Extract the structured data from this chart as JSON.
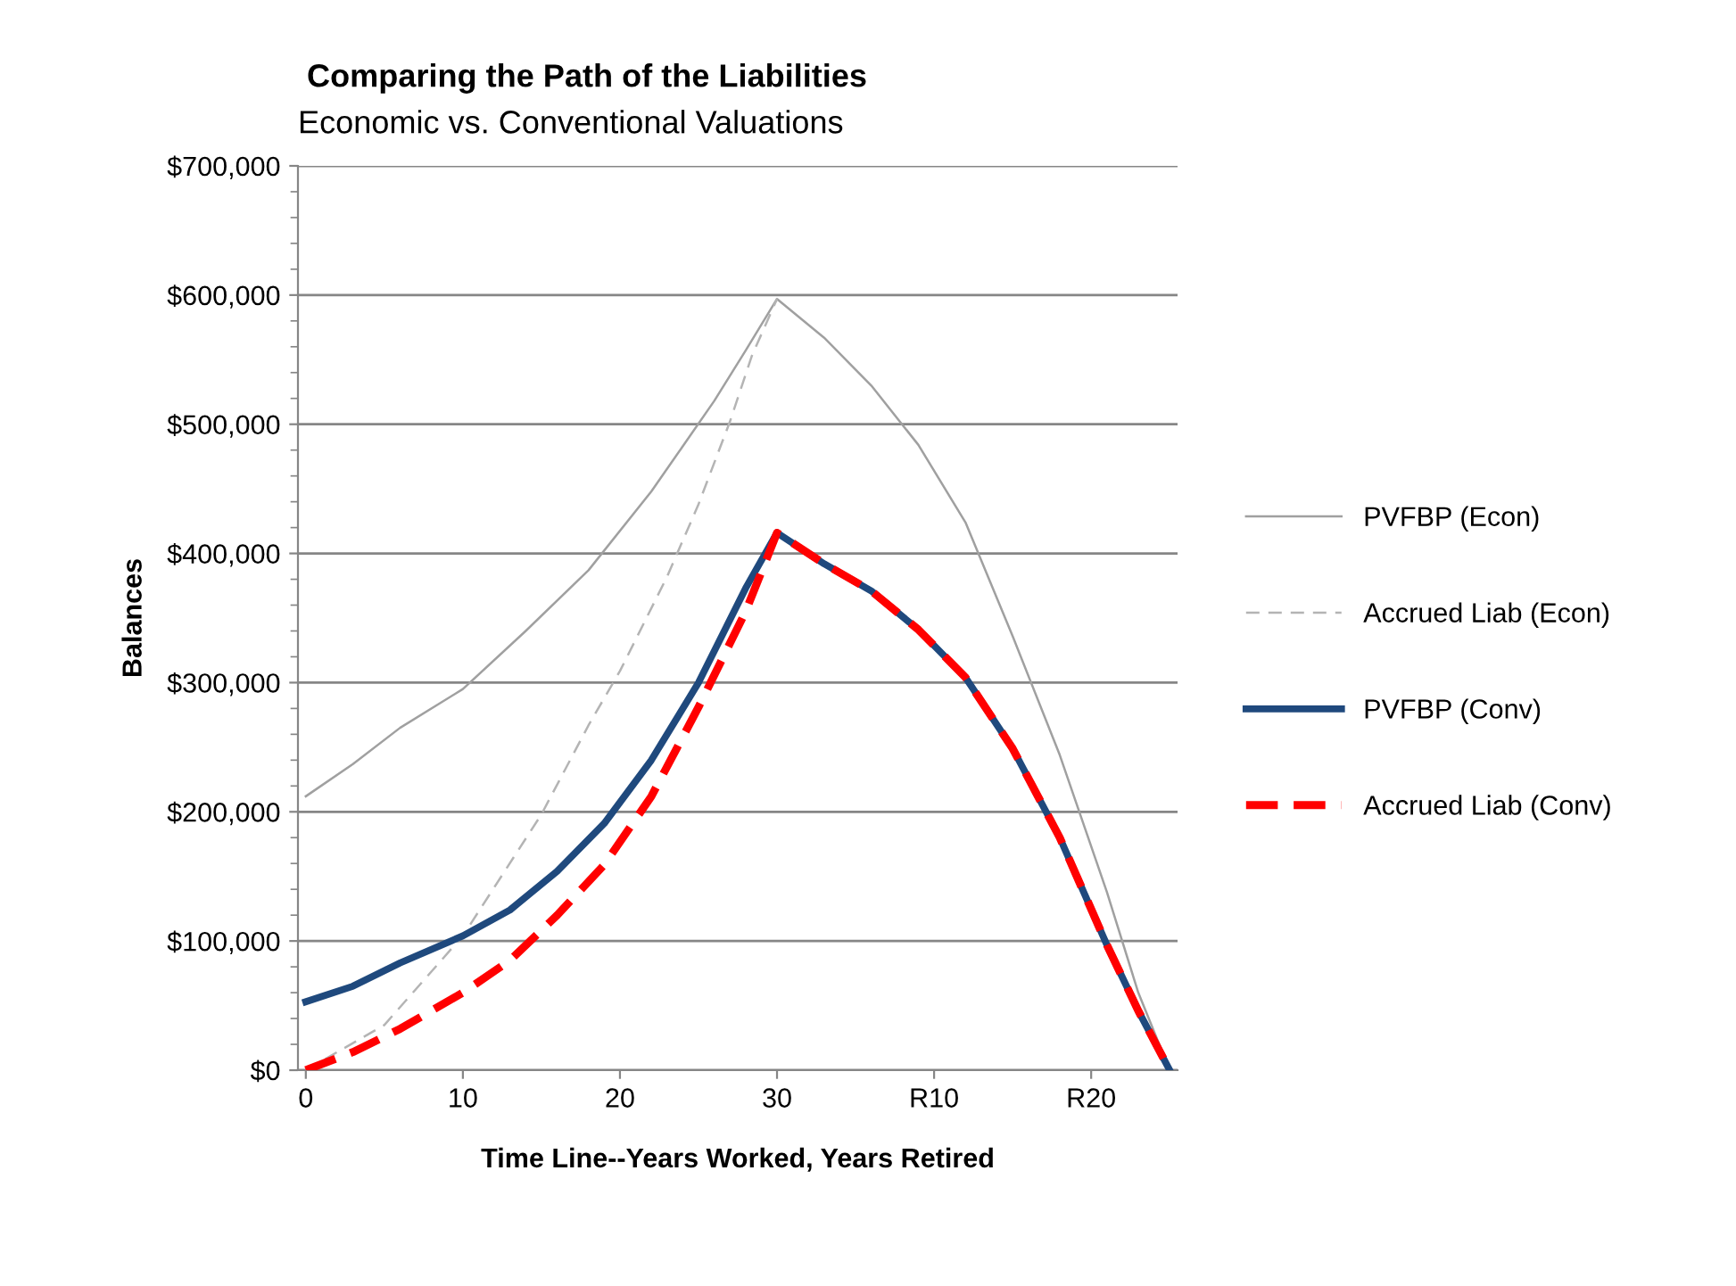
{
  "chart_data": {
    "type": "line",
    "title": "Comparing the Path of the Liabilities",
    "subtitle": "Economic vs. Conventional Valuations",
    "xlabel": "Time Line--Years Worked, Years Retired",
    "ylabel": "Balances",
    "xlim": [
      -0.5,
      55.5
    ],
    "xticks": [
      0,
      10,
      20,
      30,
      {
        "value": 40,
        "label": "R10"
      },
      {
        "value": 50,
        "label": "R20"
      }
    ],
    "ylim": [
      0,
      700000
    ],
    "yticks": [
      {
        "value": 0,
        "label": "$0"
      },
      {
        "value": 100000,
        "label": "$100,000"
      },
      {
        "value": 200000,
        "label": "$200,000"
      },
      {
        "value": 300000,
        "label": "$300,000"
      },
      {
        "value": 400000,
        "label": "$400,000"
      },
      {
        "value": 500000,
        "label": "$500,000"
      },
      {
        "value": 600000,
        "label": "$600,000"
      },
      {
        "value": 700000,
        "label": "$700,000"
      }
    ],
    "grid": "y",
    "legend": "right",
    "marker": "none",
    "series": [
      {
        "name": "PVFBP (Econ)",
        "color": "#a0a0a0",
        "line_style": "solid",
        "x": [
          0,
          3,
          6,
          10,
          14,
          18,
          22,
          26,
          28,
          30,
          33,
          36,
          39,
          42,
          45,
          48,
          51,
          53,
          55
        ],
        "values": [
          212000,
          237000,
          265000,
          295000,
          340000,
          387000,
          448000,
          518000,
          557000,
          597000,
          567000,
          530000,
          484000,
          424000,
          336000,
          244000,
          138000,
          60000,
          0
        ]
      },
      {
        "name": "Accrued Liab (Econ)",
        "color": "#b4b4b4",
        "line_style": "dashed",
        "x": [
          0,
          5,
          10,
          15,
          18,
          20,
          23,
          25,
          27,
          28.4,
          30
        ],
        "values": [
          0,
          35000,
          104000,
          198000,
          267000,
          309000,
          382000,
          438000,
          502000,
          553000,
          597000
        ]
      },
      {
        "name": "PVFBP (Conv)",
        "color": "#1f497d",
        "line_style": "solid",
        "x": [
          0,
          3,
          6,
          10,
          13,
          16,
          19,
          22,
          25,
          28,
          30,
          33,
          36,
          39,
          42,
          45,
          48,
          51,
          53,
          55
        ],
        "values": [
          53000,
          65000,
          83000,
          104000,
          124000,
          154000,
          191000,
          240000,
          300000,
          373000,
          416000,
          392000,
          371000,
          341000,
          304000,
          249000,
          180000,
          97000,
          46000,
          0
        ]
      },
      {
        "name": "Accrued Liab (Conv)",
        "color": "#ff0000",
        "line_style": "dashed",
        "x": [
          0,
          3,
          6,
          10,
          13,
          16,
          19,
          22,
          25,
          28,
          30,
          33,
          36,
          39,
          42,
          45,
          48,
          51,
          53,
          55
        ],
        "values": [
          0,
          14000,
          32000,
          60000,
          85000,
          120000,
          159000,
          212000,
          281000,
          355000,
          416000,
          392000,
          371000,
          341000,
          304000,
          249000,
          180000,
          97000,
          46000,
          0
        ]
      }
    ]
  }
}
